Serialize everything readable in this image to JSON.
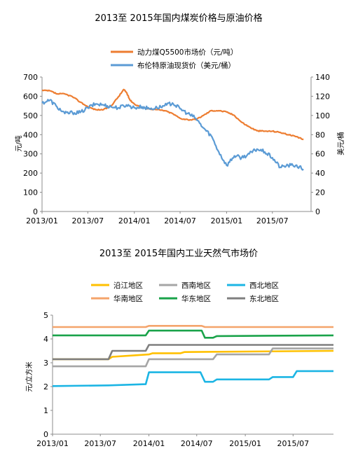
{
  "chart_data": [
    {
      "type": "line",
      "title": "2013至 2015年国内煤炭价格与原油价格",
      "ylabel": "元/吨",
      "y2label": "美元/桶",
      "x_ticks": [
        "2013/01",
        "2013/07",
        "2014/01",
        "2014/07",
        "2015/01",
        "2015/07"
      ],
      "ylim": [
        0,
        700
      ],
      "y_ticks": [
        0,
        100,
        200,
        300,
        400,
        500,
        600,
        700
      ],
      "y2lim": [
        0,
        140
      ],
      "y2_ticks": [
        0,
        20,
        40,
        60,
        80,
        100,
        120,
        140
      ],
      "legend_position": "top",
      "series": [
        {
          "name": "动力煤Q5500市场价（元/吨）",
          "color": "#ED7D31",
          "axis": "left",
          "points": [
            [
              "2013-01-01",
              630
            ],
            [
              "2013-02-01",
              628
            ],
            [
              "2013-03-01",
              612
            ],
            [
              "2013-04-01",
              612
            ],
            [
              "2013-05-01",
              598
            ],
            [
              "2013-06-01",
              570
            ],
            [
              "2013-07-01",
              545
            ],
            [
              "2013-08-01",
              530
            ],
            [
              "2013-09-01",
              530
            ],
            [
              "2013-10-01",
              550
            ],
            [
              "2013-11-01",
              600
            ],
            [
              "2013-11-20",
              635
            ],
            [
              "2013-12-01",
              620
            ],
            [
              "2013-12-15",
              580
            ],
            [
              "2014-01-01",
              560
            ],
            [
              "2014-02-01",
              540
            ],
            [
              "2014-03-01",
              535
            ],
            [
              "2014-04-01",
              530
            ],
            [
              "2014-05-01",
              525
            ],
            [
              "2014-06-01",
              510
            ],
            [
              "2014-07-01",
              485
            ],
            [
              "2014-08-01",
              478
            ],
            [
              "2014-09-01",
              478
            ],
            [
              "2014-10-01",
              500
            ],
            [
              "2014-11-01",
              525
            ],
            [
              "2014-12-01",
              525
            ],
            [
              "2015-01-01",
              518
            ],
            [
              "2015-02-01",
              500
            ],
            [
              "2015-03-01",
              465
            ],
            [
              "2015-04-01",
              440
            ],
            [
              "2015-05-01",
              420
            ],
            [
              "2015-06-01",
              418
            ],
            [
              "2015-07-01",
              418
            ],
            [
              "2015-08-01",
              412
            ],
            [
              "2015-09-01",
              400
            ],
            [
              "2015-10-01",
              390
            ],
            [
              "2015-11-01",
              375
            ]
          ]
        },
        {
          "name": "布伦特原油现货价（美元/桶）",
          "color": "#5B9BD5",
          "axis": "right",
          "points": [
            [
              "2013-01-01",
              113
            ],
            [
              "2013-02-01",
              116
            ],
            [
              "2013-03-01",
              109
            ],
            [
              "2013-04-01",
              102
            ],
            [
              "2013-05-01",
              103
            ],
            [
              "2013-06-01",
              103
            ],
            [
              "2013-07-01",
              108
            ],
            [
              "2013-08-01",
              112
            ],
            [
              "2013-09-01",
              111
            ],
            [
              "2013-10-01",
              109
            ],
            [
              "2013-11-01",
              108
            ],
            [
              "2013-12-01",
              111
            ],
            [
              "2014-01-01",
              108
            ],
            [
              "2014-02-01",
              109
            ],
            [
              "2014-03-01",
              107
            ],
            [
              "2014-04-01",
              108
            ],
            [
              "2014-05-01",
              110
            ],
            [
              "2014-06-01",
              113
            ],
            [
              "2014-07-01",
              107
            ],
            [
              "2014-08-01",
              102
            ],
            [
              "2014-09-01",
              97
            ],
            [
              "2014-10-01",
              87
            ],
            [
              "2014-11-01",
              79
            ],
            [
              "2014-12-01",
              62
            ],
            [
              "2015-01-01",
              48
            ],
            [
              "2015-02-01",
              58
            ],
            [
              "2015-03-01",
              56
            ],
            [
              "2015-04-01",
              60
            ],
            [
              "2015-05-01",
              65
            ],
            [
              "2015-06-01",
              62
            ],
            [
              "2015-07-01",
              56
            ],
            [
              "2015-08-01",
              46
            ],
            [
              "2015-09-01",
              48
            ],
            [
              "2015-10-01",
              48
            ],
            [
              "2015-11-01",
              44
            ]
          ]
        }
      ]
    },
    {
      "type": "line",
      "title": "2013至 2015年国内工业天然气市场价",
      "ylabel": "元/立方米",
      "x_ticks": [
        "2013/01",
        "2013/07",
        "2014/01",
        "2014/07",
        "2015/01",
        "2015/07"
      ],
      "ylim": [
        0,
        5
      ],
      "y_ticks": [
        0,
        1,
        2,
        3,
        4,
        5
      ],
      "legend_position": "top",
      "series": [
        {
          "name": "沿江地区",
          "color": "#FFC000",
          "points": [
            [
              "2013-01-01",
              3.15
            ],
            [
              "2013-08-01",
              3.15
            ],
            [
              "2013-08-15",
              3.25
            ],
            [
              "2014-01-01",
              3.35
            ],
            [
              "2014-01-15",
              3.4
            ],
            [
              "2014-05-01",
              3.4
            ],
            [
              "2014-05-15",
              3.45
            ],
            [
              "2015-12-01",
              3.5
            ]
          ]
        },
        {
          "name": "西南地区",
          "color": "#A5A5A5",
          "points": [
            [
              "2013-01-01",
              2.85
            ],
            [
              "2013-12-20",
              2.85
            ],
            [
              "2014-01-01",
              3.15
            ],
            [
              "2014-09-01",
              3.15
            ],
            [
              "2014-09-15",
              3.35
            ],
            [
              "2015-04-01",
              3.35
            ],
            [
              "2015-04-15",
              3.6
            ],
            [
              "2015-12-01",
              3.6
            ]
          ]
        },
        {
          "name": "西北地区",
          "color": "#1CB5E4",
          "points": [
            [
              "2013-01-01",
              2.02
            ],
            [
              "2013-08-01",
              2.05
            ],
            [
              "2013-12-20",
              2.1
            ],
            [
              "2014-01-01",
              2.6
            ],
            [
              "2014-07-15",
              2.6
            ],
            [
              "2014-08-01",
              2.2
            ],
            [
              "2014-09-01",
              2.2
            ],
            [
              "2014-09-15",
              2.3
            ],
            [
              "2015-04-01",
              2.3
            ],
            [
              "2015-04-15",
              2.4
            ],
            [
              "2015-07-01",
              2.4
            ],
            [
              "2015-07-15",
              2.65
            ],
            [
              "2015-12-01",
              2.65
            ]
          ]
        },
        {
          "name": "华南地区",
          "color": "#F4A46B",
          "points": [
            [
              "2013-01-01",
              4.5
            ],
            [
              "2013-12-20",
              4.5
            ],
            [
              "2014-01-01",
              4.55
            ],
            [
              "2014-07-20",
              4.55
            ],
            [
              "2014-08-01",
              4.5
            ],
            [
              "2015-12-01",
              4.5
            ]
          ]
        },
        {
          "name": "华东地区",
          "color": "#1AA34A",
          "points": [
            [
              "2013-01-01",
              4.15
            ],
            [
              "2013-12-20",
              4.15
            ],
            [
              "2014-01-01",
              4.35
            ],
            [
              "2014-07-20",
              4.35
            ],
            [
              "2014-08-01",
              4.05
            ],
            [
              "2014-09-01",
              4.05
            ],
            [
              "2014-09-15",
              4.12
            ],
            [
              "2015-12-01",
              4.15
            ]
          ]
        },
        {
          "name": "东北地区",
          "color": "#7F7F7F",
          "points": [
            [
              "2013-01-01",
              3.15
            ],
            [
              "2013-08-01",
              3.15
            ],
            [
              "2013-08-15",
              3.5
            ],
            [
              "2013-12-20",
              3.5
            ],
            [
              "2014-01-01",
              3.75
            ],
            [
              "2015-12-01",
              3.75
            ]
          ]
        }
      ]
    }
  ]
}
